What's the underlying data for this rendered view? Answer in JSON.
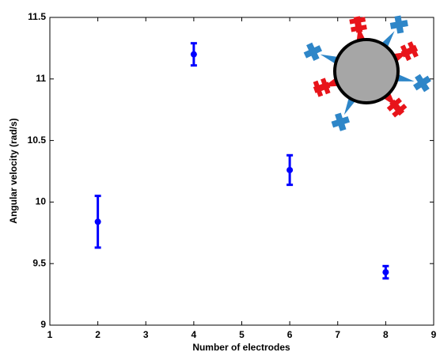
{
  "chart_data": {
    "type": "errorbar",
    "xlabel": "Number of electrodes",
    "ylabel": "Angular velocity (rad/s)",
    "x": [
      2,
      4,
      6,
      8
    ],
    "series": [
      {
        "color": "#0000ff",
        "values": [
          9.84,
          11.2,
          10.26,
          9.43
        ],
        "errors": [
          0.21,
          0.09,
          0.12,
          0.05
        ]
      }
    ],
    "xlim": [
      1,
      9
    ],
    "xticks": [
      1,
      2,
      3,
      4,
      5,
      6,
      7,
      8,
      9
    ],
    "ylim": [
      9,
      11.5
    ],
    "yticks": [
      9,
      9.5,
      10,
      10.5,
      11,
      11.5
    ]
  }
}
